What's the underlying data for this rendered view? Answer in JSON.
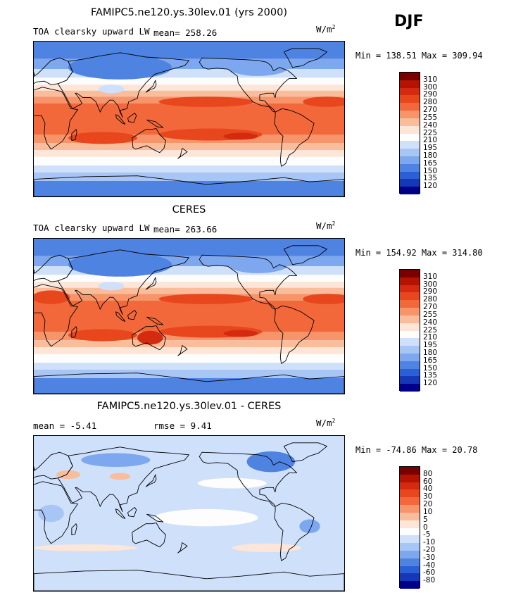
{
  "season": "DJF",
  "panels": [
    {
      "title": "FAMIPC5.ne120.ys.30lev.01 (yrs 2000)",
      "left_label": "TOA clearsky upward LW",
      "mean_label": "mean= 258.26",
      "units": "W/m",
      "units_exp": "2",
      "minmax": "Min = 138.51 Max = 309.94",
      "kind": "abs",
      "colorbar": {
        "labels": [
          "310",
          "300",
          "290",
          "280",
          "270",
          "255",
          "240",
          "225",
          "210",
          "195",
          "180",
          "165",
          "150",
          "135",
          "120"
        ],
        "colors": [
          "#7a0000",
          "#b31300",
          "#d42b10",
          "#e8471e",
          "#f2683a",
          "#f7946a",
          "#f9bd9c",
          "#fde6d8",
          "#fdfdfd",
          "#cfe0fb",
          "#a8c6f5",
          "#7da7ee",
          "#4f83e2",
          "#2a5fd6",
          "#1438b8",
          "#00008a"
        ]
      }
    },
    {
      "title": "CERES",
      "left_label": "TOA clearsky upward LW",
      "mean_label": "mean= 263.66",
      "units": "W/m",
      "units_exp": "2",
      "minmax": "Min = 154.92 Max = 314.80",
      "kind": "abs",
      "colorbar": {
        "labels": [
          "310",
          "300",
          "290",
          "280",
          "270",
          "255",
          "240",
          "225",
          "210",
          "195",
          "180",
          "165",
          "150",
          "135",
          "120"
        ],
        "colors": [
          "#7a0000",
          "#b31300",
          "#d42b10",
          "#e8471e",
          "#f2683a",
          "#f7946a",
          "#f9bd9c",
          "#fde6d8",
          "#fdfdfd",
          "#cfe0fb",
          "#a8c6f5",
          "#7da7ee",
          "#4f83e2",
          "#2a5fd6",
          "#1438b8",
          "#00008a"
        ]
      }
    },
    {
      "title": "FAMIPC5.ne120.ys.30lev.01 - CERES",
      "left_label": "mean =   -5.41",
      "mean_label": "rmse =    9.41",
      "units": "W/m",
      "units_exp": "2",
      "minmax": "Min = -74.86 Max =  20.78",
      "kind": "diff",
      "colorbar": {
        "labels": [
          "80",
          "60",
          "40",
          "30",
          "20",
          "10",
          "5",
          "0",
          "-5",
          "-10",
          "-20",
          "-30",
          "-40",
          "-60",
          "-80"
        ],
        "colors": [
          "#7a0000",
          "#b31300",
          "#d42b10",
          "#e8471e",
          "#f2683a",
          "#f7946a",
          "#f9bd9c",
          "#fde6d8",
          "#fdfdfd",
          "#cfe0fb",
          "#a8c6f5",
          "#7da7ee",
          "#4f83e2",
          "#2a5fd6",
          "#1438b8",
          "#00008a"
        ]
      }
    }
  ]
}
